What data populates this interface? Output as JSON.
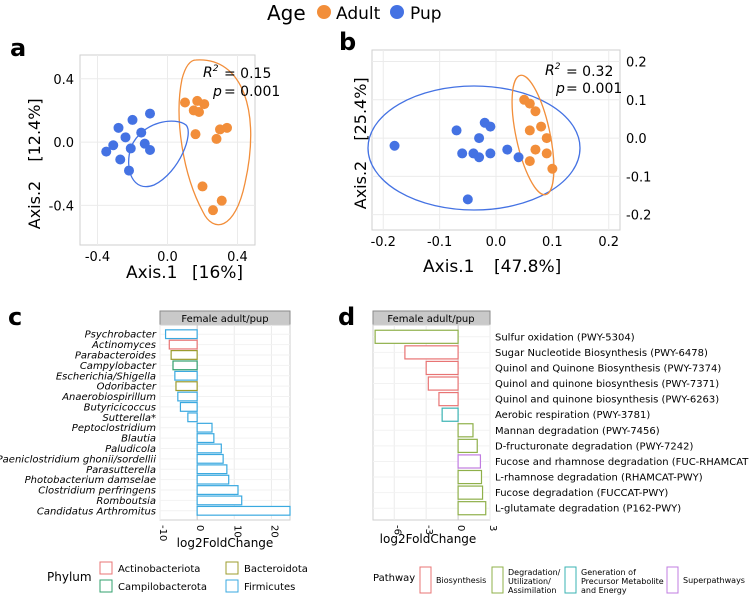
{
  "legend_top": {
    "title": "Age",
    "items": [
      {
        "label": "Adult",
        "color": "#F28E3A"
      },
      {
        "label": "Pup",
        "color": "#4472E3"
      }
    ]
  },
  "panel_labels": [
    "a",
    "b",
    "c",
    "d"
  ],
  "chart_data": [
    {
      "type": "scatter",
      "panel": "a",
      "xlabel": "Axis.1",
      "xlabel_pct": "[16%]",
      "ylabel": "Axis.2",
      "ylabel_pct": "[12.4%]",
      "xlim": [
        -0.5,
        0.5
      ],
      "ylim": [
        -0.65,
        0.55
      ],
      "xticks": [
        "-0.4",
        "0.0",
        "0.4"
      ],
      "xtick_values": [
        -0.4,
        0.0,
        0.4
      ],
      "yticks": [
        "0.4",
        "0.0",
        "-0.4"
      ],
      "ytick_values": [
        0.4,
        0.0,
        -0.4
      ],
      "r2": "= 0.15",
      "p": "= 0.001",
      "series": [
        {
          "name": "Adult",
          "color": "#F28E3A",
          "points": [
            [
              0.1,
              0.25
            ],
            [
              0.17,
              0.26
            ],
            [
              0.21,
              0.24
            ],
            [
              0.15,
              0.2
            ],
            [
              0.18,
              0.19
            ],
            [
              0.3,
              0.08
            ],
            [
              0.34,
              0.09
            ],
            [
              0.28,
              0.02
            ],
            [
              0.16,
              0.05
            ],
            [
              0.2,
              -0.28
            ],
            [
              0.31,
              -0.37
            ],
            [
              0.26,
              -0.43
            ]
          ]
        },
        {
          "name": "Pup",
          "color": "#4472E3",
          "points": [
            [
              -0.1,
              0.18
            ],
            [
              -0.2,
              0.14
            ],
            [
              -0.28,
              0.09
            ],
            [
              -0.15,
              0.06
            ],
            [
              -0.24,
              0.03
            ],
            [
              -0.31,
              -0.02
            ],
            [
              -0.21,
              -0.04
            ],
            [
              -0.13,
              -0.01
            ],
            [
              -0.27,
              -0.11
            ],
            [
              -0.1,
              -0.05
            ],
            [
              -0.35,
              -0.06
            ],
            [
              -0.22,
              -0.18
            ]
          ]
        }
      ]
    },
    {
      "type": "scatter",
      "panel": "b",
      "xlabel": "Axis.1",
      "xlabel_pct": "[47.8%]",
      "ylabel": "Axis.2",
      "ylabel_pct": "[25.4%]",
      "xlim": [
        -0.22,
        0.22
      ],
      "ylim": [
        -0.24,
        0.23
      ],
      "xticks": [
        "-0.2",
        "-0.1",
        "0.0",
        "0.1",
        "0.2"
      ],
      "xtick_values": [
        -0.2,
        -0.1,
        0.0,
        0.1,
        0.2
      ],
      "yticks": [
        "0.2",
        "0.1",
        "0.0",
        "-0.1",
        "-0.2"
      ],
      "ytick_values": [
        0.2,
        0.1,
        0.0,
        -0.1,
        -0.2
      ],
      "r2": "= 0.32",
      "p": "= 0.001",
      "series": [
        {
          "name": "Adult",
          "color": "#F28E3A",
          "points": [
            [
              0.05,
              0.1
            ],
            [
              0.06,
              0.09
            ],
            [
              0.07,
              0.07
            ],
            [
              0.08,
              0.03
            ],
            [
              0.06,
              0.02
            ],
            [
              0.09,
              0.0
            ],
            [
              0.07,
              -0.03
            ],
            [
              0.09,
              -0.04
            ],
            [
              0.06,
              -0.06
            ],
            [
              0.1,
              -0.08
            ]
          ]
        },
        {
          "name": "Pup",
          "color": "#4472E3",
          "points": [
            [
              -0.18,
              -0.02
            ],
            [
              -0.07,
              0.02
            ],
            [
              -0.02,
              0.04
            ],
            [
              -0.01,
              0.03
            ],
            [
              -0.03,
              0.0
            ],
            [
              -0.06,
              -0.04
            ],
            [
              -0.04,
              -0.04
            ],
            [
              -0.01,
              -0.04
            ],
            [
              0.02,
              -0.03
            ],
            [
              0.04,
              -0.05
            ],
            [
              -0.03,
              -0.05
            ],
            [
              -0.05,
              -0.16
            ]
          ]
        }
      ]
    },
    {
      "type": "bar",
      "panel": "c",
      "orientation": "horizontal",
      "strip": "Female adult/pup",
      "xlabel": "log2FoldChange",
      "xlim": [
        -10,
        25
      ],
      "xticks": [
        "-10",
        "0",
        "10",
        "20"
      ],
      "xtick_values": [
        -10,
        0,
        10,
        20
      ],
      "categories": [
        "Psychrobacter",
        "Actinomyces",
        "Parabacteroides",
        "Campylobacter",
        "Escherichia/Shigella",
        "Odoribacter",
        "Anaerobiospirillum",
        "Butyricicoccus",
        "Sutterella*",
        "Peptoclostridium",
        "Blautia",
        "Paludicola",
        "Paeniclostridium ghonii/sordellii",
        "Parasutterella",
        "Photobacterium damselae",
        "Clostridium perfringens",
        "Romboutsia",
        "Candidatus Arthromitus"
      ],
      "values": [
        -8.5,
        -7.5,
        -7.0,
        -6.5,
        -6.0,
        -5.7,
        -5.2,
        -4.5,
        -2.5,
        4.0,
        4.5,
        6.5,
        7.0,
        8.0,
        8.5,
        11.0,
        12.0,
        25.0
      ],
      "phylum": [
        "Firmicutes",
        "Actinobacteriota",
        "Bacteroidota",
        "Campilobacterota",
        "Firmicutes",
        "Bacteroidota",
        "Firmicutes",
        "Firmicutes",
        "Firmicutes",
        "Firmicutes",
        "Firmicutes",
        "Firmicutes",
        "Firmicutes",
        "Firmicutes",
        "Firmicutes",
        "Firmicutes",
        "Firmicutes",
        "Firmicutes"
      ],
      "legend_title": "Phylum",
      "legend": [
        {
          "label": "Actinobacteriota",
          "color": "#E87474"
        },
        {
          "label": "Bacteroidota",
          "color": "#9C9C2E"
        },
        {
          "label": "Campilobacterota",
          "color": "#32A06E"
        },
        {
          "label": "Firmicutes",
          "color": "#3AA9E0"
        }
      ]
    },
    {
      "type": "bar",
      "panel": "d",
      "orientation": "horizontal",
      "strip": "Female adult/pup",
      "xlabel": "log2FoldChange",
      "xlim": [
        -8,
        3
      ],
      "xticks": [
        "-6",
        "-3",
        "0",
        "3"
      ],
      "xtick_values": [
        -6,
        -3,
        0,
        3
      ],
      "categories": [
        "Sulfur oxidation (PWY-5304)",
        "Sugar Nucleotide Biosynthesis (PWY-6478)",
        "Quinol and Quinone Biosynthesis (PWY-7374)",
        "Quinol and quinone biosynthesis (PWY-7371)",
        "Quinol and quinone biosynthesis (PWY-6263)",
        "Aerobic respiration (PWY-3781)",
        "Mannan degradation (PWY-7456)",
        "D-fructuronate degradation (PWY-7242)",
        "Fucose and rhamnose degradation (FUC-RHAMCAT)",
        "L-rhamnose degradation (RHAMCAT-PWY)",
        "Fucose degradation (FUCCAT-PWY)",
        "L-glutamate degradation (P162-PWY)"
      ],
      "values": [
        -7.8,
        -5.0,
        -3.0,
        -2.8,
        -1.8,
        -1.5,
        1.4,
        1.8,
        2.1,
        2.2,
        2.3,
        2.6
      ],
      "pathway": [
        "Degradation",
        "Biosynthesis",
        "Biosynthesis",
        "Biosynthesis",
        "Biosynthesis",
        "Generation",
        "Degradation",
        "Degradation",
        "Superpathways",
        "Degradation",
        "Degradation",
        "Degradation"
      ],
      "legend_title": "Pathway",
      "legend": [
        {
          "key": "Biosynthesis",
          "lines": [
            "Biosynthesis"
          ],
          "color": "#E87474"
        },
        {
          "key": "Degradation",
          "lines": [
            "Degradation/",
            "Utilization/",
            "Assimilation"
          ],
          "color": "#8FB04A"
        },
        {
          "key": "Generation",
          "lines": [
            "Generation of",
            "Precursor Metabolite",
            "and Energy"
          ],
          "color": "#3AB3B3"
        },
        {
          "key": "Superpathways",
          "lines": [
            "Superpathways"
          ],
          "color": "#C07CE0"
        }
      ]
    }
  ]
}
